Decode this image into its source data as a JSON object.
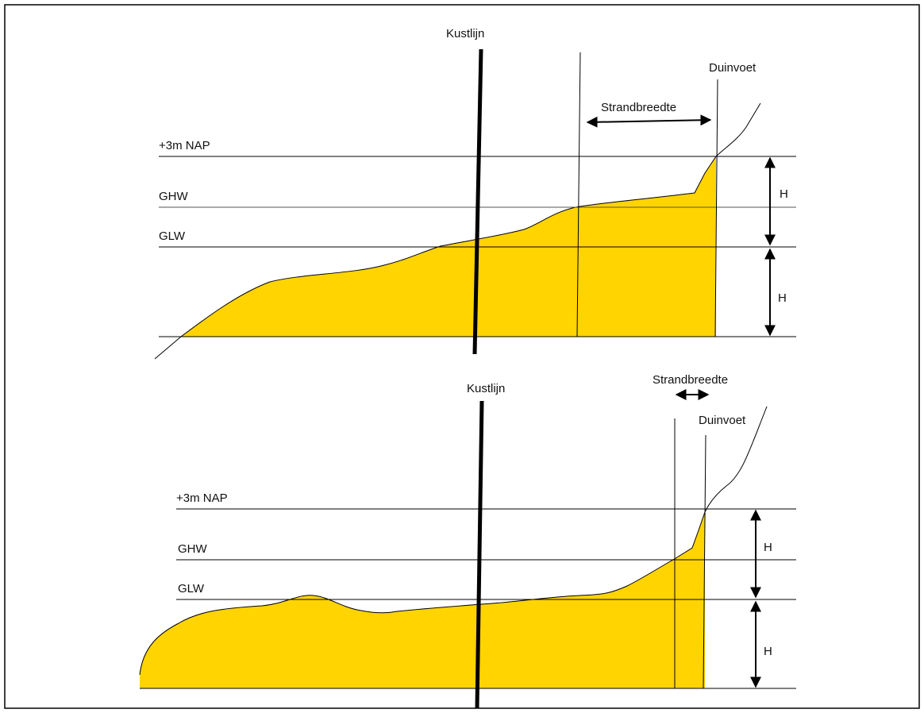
{
  "colors": {
    "profile_fill": "#FFD400",
    "line": "#000000",
    "frame": "#000000",
    "background": "#FFFFFF"
  },
  "top_panel": {
    "kustlijn_label": "Kustlijn",
    "duinvoet_label": "Duinvoet",
    "strandbreedte_label": "Strandbreedte",
    "level_nap": "+3m NAP",
    "level_ghw": "GHW",
    "level_glw": "GLW",
    "height_upper": "H",
    "height_lower": "H"
  },
  "bottom_panel": {
    "kustlijn_label": "Kustlijn",
    "duinvoet_label": "Duinvoet",
    "strandbreedte_label": "Strandbreedte",
    "level_nap": "+3m NAP",
    "level_ghw": "GHW",
    "level_glw": "GLW",
    "height_upper": "H",
    "height_lower": "H"
  }
}
